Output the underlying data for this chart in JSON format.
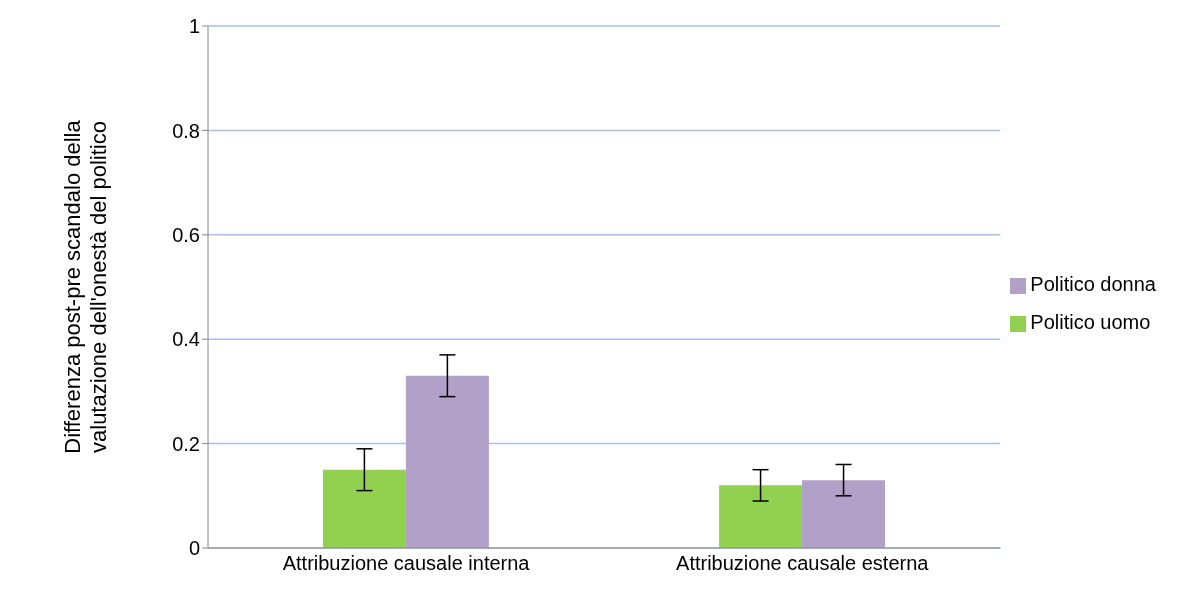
{
  "chart_data": {
    "type": "bar",
    "ylabel": "Differenza post-pre scandalo della valutazione dell'onestà del politico",
    "categories": [
      "Attribuzione causale interna",
      "Attribuzione causale esterna"
    ],
    "series": [
      {
        "name": "Politico uomo",
        "color": "#92d050",
        "values": [
          0.15,
          0.12
        ],
        "errors": [
          0.04,
          0.03
        ]
      },
      {
        "name": "Politico donna",
        "color": "#b1a0c7",
        "values": [
          0.33,
          0.13
        ],
        "errors": [
          0.04,
          0.03
        ]
      }
    ],
    "ylim": [
      0,
      1
    ],
    "yticks": [
      0,
      0.2,
      0.4,
      0.6,
      0.8,
      1
    ],
    "grid": "y",
    "legend": "right"
  }
}
